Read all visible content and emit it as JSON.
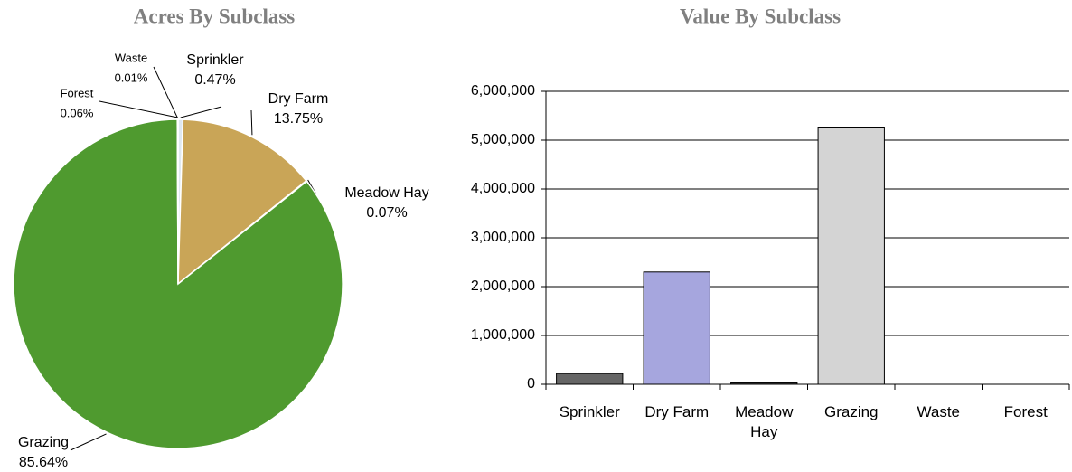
{
  "chart_data": [
    {
      "type": "pie",
      "title": "Acres By Subclass",
      "categories": [
        "Sprinkler",
        "Dry Farm",
        "Meadow Hay",
        "Grazing",
        "Waste",
        "Forest"
      ],
      "values": [
        0.47,
        13.75,
        0.07,
        85.64,
        0.01,
        0.06
      ],
      "value_labels": [
        "0.47%",
        "13.75%",
        "0.07%",
        "85.64%",
        "0.01%",
        "0.06%"
      ],
      "colors": [
        "#dfe8f0",
        "#c9a557",
        "#9fc7e0",
        "#4f9a2f",
        "#b8c4b0",
        "#8aa07a"
      ]
    },
    {
      "type": "bar",
      "title": "Value By Subclass",
      "categories": [
        "Sprinkler",
        "Dry Farm",
        "Meadow Hay",
        "Grazing",
        "Waste",
        "Forest"
      ],
      "values": [
        220000,
        2300000,
        30000,
        5250000,
        0,
        0
      ],
      "colors": [
        "#666666",
        "#a6a6de",
        "#404040",
        "#d4d4d4",
        "#999999",
        "#999999"
      ],
      "ylim": [
        0,
        6000000
      ],
      "yticks": [
        0,
        {
          "value": 1000000,
          "label": "1,000,000"
        },
        {
          "value": 2000000,
          "label": "2,000,000"
        },
        {
          "value": 3000000,
          "label": "3,000,000"
        },
        {
          "value": 4000000,
          "label": "4,000,000"
        },
        {
          "value": 5000000,
          "label": "5,000,000"
        },
        {
          "value": 6000000,
          "label": "6,000,000"
        }
      ],
      "grid": true
    }
  ]
}
